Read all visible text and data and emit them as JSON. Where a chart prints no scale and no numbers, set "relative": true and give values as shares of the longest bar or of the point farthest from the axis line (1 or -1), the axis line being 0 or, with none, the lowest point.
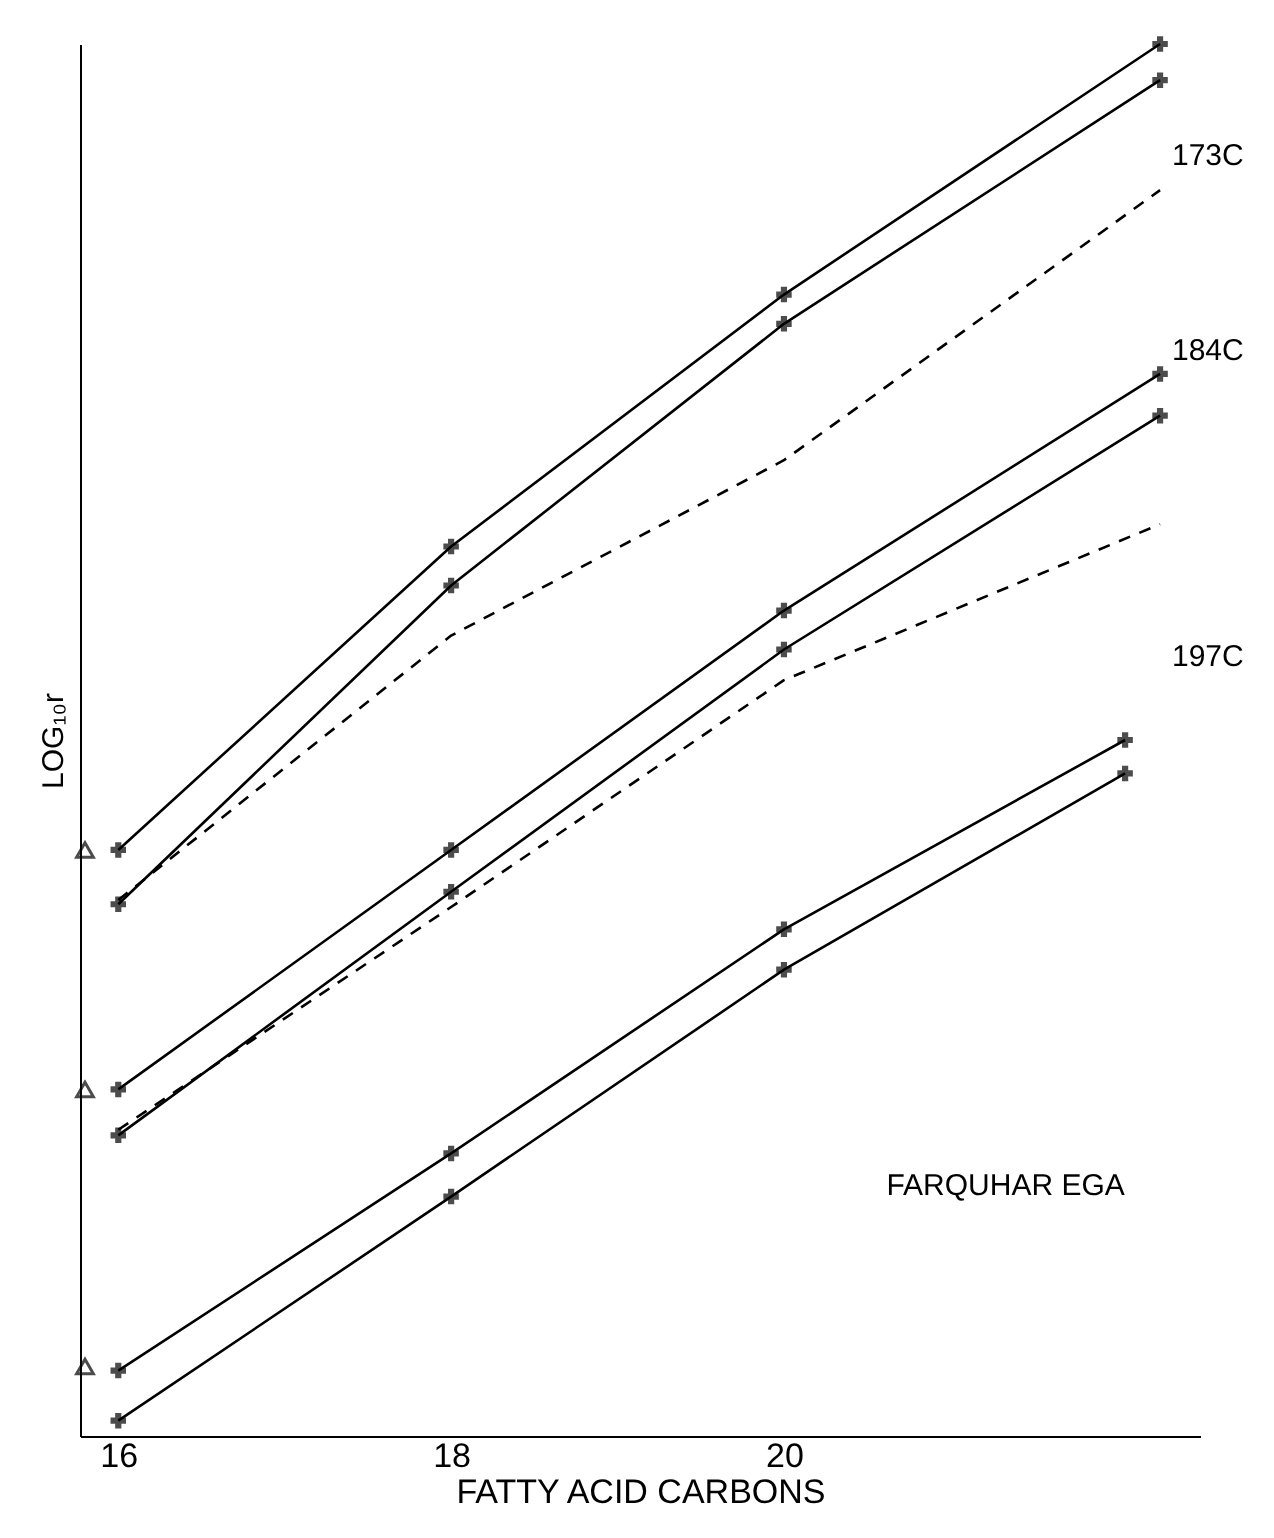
{
  "chart_data": {
    "type": "line",
    "relative": true,
    "xlabel": "FATTY ACID CARBONS",
    "ylabel": "LOG₁₀r",
    "xlim": [
      15.77,
      22.5
    ],
    "xticks": [
      16,
      18,
      20
    ],
    "marker": "cross",
    "series": [
      {
        "color": "#000000",
        "x": [
          16,
          18,
          20,
          22.26
        ],
        "values": [
          0.421,
          0.639,
          0.82,
          1.0
        ]
      },
      {
        "color": "#000000",
        "x": [
          16,
          18,
          20,
          22.26
        ],
        "values": [
          0.382,
          0.611,
          0.799,
          0.974
        ]
      },
      {
        "color": "#000000",
        "line_style": "dashed",
        "marker": "none",
        "x": [
          16,
          18,
          20,
          22.26
        ],
        "values": [
          0.385,
          0.575,
          0.701,
          0.895
        ]
      },
      {
        "color": "#000000",
        "x": [
          16,
          18,
          20,
          22.26
        ],
        "values": [
          0.249,
          0.421,
          0.593,
          0.763
        ]
      },
      {
        "color": "#000000",
        "x": [
          16,
          18,
          20,
          22.26
        ],
        "values": [
          0.216,
          0.391,
          0.565,
          0.733
        ]
      },
      {
        "color": "#000000",
        "line_style": "dashed",
        "marker": "none",
        "x": [
          16,
          18,
          20,
          22.26
        ],
        "values": [
          0.22,
          0.38,
          0.543,
          0.655
        ]
      },
      {
        "color": "#000000",
        "x": [
          16,
          18,
          20,
          22.05
        ],
        "values": [
          0.047,
          0.203,
          0.364,
          0.5
        ]
      },
      {
        "color": "#000000",
        "x": [
          16,
          18,
          20,
          22.05
        ],
        "values": [
          0.011,
          0.172,
          0.335,
          0.476
        ]
      },
      {
        "type": "scatter",
        "marker": "triangle",
        "color": "#000000",
        "x": [
          15.8,
          15.8,
          15.8
        ],
        "values": [
          0.421,
          0.249,
          0.05
        ]
      }
    ],
    "annotations": [
      "173C",
      "184C",
      "197C",
      "FARQUHAR EGA"
    ]
  }
}
